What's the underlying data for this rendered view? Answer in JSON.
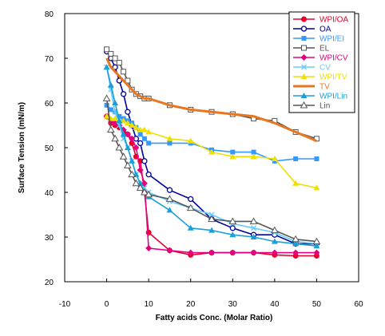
{
  "chart_data": {
    "type": "line",
    "title": "",
    "xlabel": "Fatty acids Conc. (Molar Ratio)",
    "ylabel": "Surface Tension (mN/m)",
    "xlim": [
      -10,
      60
    ],
    "ylim": [
      20,
      80
    ],
    "xticks": [
      -10,
      0,
      10,
      20,
      30,
      40,
      50,
      60
    ],
    "yticks": [
      20,
      30,
      40,
      50,
      60,
      70,
      80
    ],
    "grid": false,
    "legend_position": "top-right",
    "series": [
      {
        "name": "WPI/OA",
        "color": "#e8002a",
        "marker": "circle-filled",
        "x": [
          0,
          1,
          2,
          3,
          4,
          5,
          6,
          7,
          8,
          9,
          10,
          15,
          20,
          25,
          30,
          35,
          40,
          45,
          50
        ],
        "y": [
          57,
          55.5,
          55,
          54.5,
          53.5,
          53,
          51,
          48,
          47,
          40,
          31,
          27,
          26,
          26.5,
          26.5,
          26.5,
          26,
          25.8,
          25.8
        ]
      },
      {
        "name": "OA",
        "color": "#00009c",
        "marker": "circle-open",
        "x": [
          0,
          1,
          2,
          3,
          4,
          5,
          6,
          7,
          8,
          9,
          10,
          15,
          20,
          25,
          30,
          35,
          40,
          45,
          50
        ],
        "y": [
          71.5,
          70,
          68,
          65,
          62,
          58,
          55,
          52,
          51,
          47,
          44,
          40.5,
          38.5,
          34,
          32,
          30.5,
          30.5,
          28.5,
          28.5
        ]
      },
      {
        "name": "WPI/EI",
        "color": "#3399ff",
        "marker": "square-filled",
        "x": [
          0,
          1,
          2,
          3,
          4,
          5,
          6,
          7,
          8,
          9,
          10,
          15,
          20,
          25,
          30,
          35,
          40,
          45,
          50
        ],
        "y": [
          59.5,
          58.5,
          58,
          57,
          56.5,
          56,
          55.5,
          54.5,
          53,
          52,
          51,
          51,
          51,
          49.5,
          49,
          49,
          47,
          47.5,
          47.5
        ]
      },
      {
        "name": "EL",
        "color": "#555555",
        "marker": "square-open",
        "x": [
          0,
          1,
          2,
          3,
          4,
          5,
          6,
          7,
          8,
          9,
          10,
          15,
          20,
          25,
          30,
          35,
          40,
          45,
          50
        ],
        "y": [
          72,
          71,
          70,
          69,
          67,
          65,
          63,
          62,
          61.5,
          61,
          61,
          59.5,
          58.5,
          58,
          57.5,
          56.5,
          56,
          53.5,
          52
        ]
      },
      {
        "name": "WPI/CV",
        "color": "#e6007e",
        "marker": "diamond-filled",
        "x": [
          0,
          1,
          2,
          3,
          4,
          5,
          6,
          7,
          8,
          9,
          10,
          15,
          20,
          25,
          30,
          35,
          40,
          45,
          50
        ],
        "y": [
          57,
          56,
          55.5,
          55,
          54,
          53,
          52,
          50,
          45,
          42,
          27.5,
          27,
          26.5,
          26.5,
          26.5,
          26.5,
          26.5,
          26.5,
          26.5
        ]
      },
      {
        "name": "CV",
        "color": "#66ccff",
        "marker": "x",
        "x": [
          0,
          1,
          2,
          3,
          4,
          5,
          6,
          7,
          8,
          9,
          10,
          15,
          20,
          25,
          30,
          35,
          40,
          45,
          50
        ],
        "y": [
          68,
          63,
          58,
          55,
          52,
          50,
          47,
          44,
          42,
          41,
          40,
          38,
          36.5,
          35,
          33,
          32,
          31,
          29,
          28.5
        ]
      },
      {
        "name": "WPI/TV",
        "color": "#f0e000",
        "marker": "triangle-filled",
        "x": [
          0,
          1,
          2,
          3,
          4,
          5,
          6,
          7,
          8,
          9,
          10,
          15,
          20,
          25,
          30,
          35,
          40,
          45,
          50
        ],
        "y": [
          57,
          56.5,
          56.5,
          56,
          56,
          55.5,
          55,
          54.5,
          54,
          54,
          53.5,
          52,
          51.5,
          49,
          48,
          48,
          47.5,
          42,
          41
        ]
      },
      {
        "name": "TV",
        "color": "#e87722",
        "marker": "none",
        "x": [
          0,
          1,
          2,
          3,
          4,
          5,
          6,
          7,
          8,
          9,
          10,
          15,
          20,
          25,
          30,
          35,
          40,
          45,
          50
        ],
        "y": [
          70,
          68,
          67,
          66,
          65,
          64,
          63,
          62,
          61.5,
          61,
          61,
          59.5,
          58.5,
          58,
          57.5,
          57,
          55.5,
          53.5,
          51.5
        ]
      },
      {
        "name": "WPI/Lin",
        "color": "#1a9fd8",
        "marker": "triangle-filled",
        "x": [
          0,
          1,
          2,
          3,
          4,
          5,
          6,
          7,
          8,
          9,
          10,
          15,
          20,
          25,
          30,
          35,
          40,
          45,
          50
        ],
        "y": [
          68,
          64,
          60,
          56,
          53,
          50,
          47,
          44,
          42,
          40,
          39,
          36,
          32,
          31.5,
          30.5,
          30,
          29,
          28.5,
          28
        ]
      },
      {
        "name": "Lin",
        "color": "#555555",
        "marker": "triangle-open",
        "x": [
          0,
          1,
          2,
          3,
          4,
          5,
          6,
          7,
          8,
          9,
          10,
          15,
          20,
          25,
          30,
          35,
          40,
          45,
          50
        ],
        "y": [
          61,
          54,
          52,
          50,
          48,
          46,
          44,
          42,
          41,
          40,
          39.5,
          38.5,
          36.5,
          34,
          33.5,
          33.5,
          31.5,
          29.5,
          29
        ]
      }
    ]
  }
}
